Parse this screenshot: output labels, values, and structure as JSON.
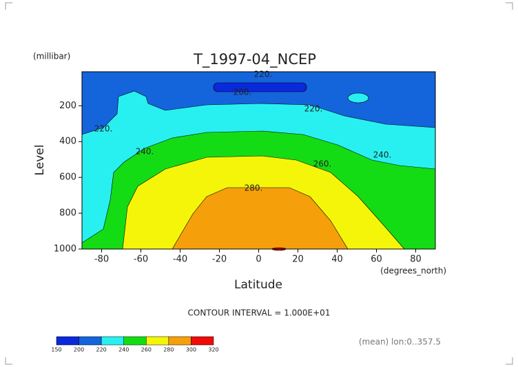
{
  "chart_data": {
    "type": "contour",
    "title": "T_1997-04_NCEP",
    "y_unit": "(millibar)",
    "y_label": "Level",
    "x_label": "Latitude",
    "x_unit": "(degrees_north)",
    "xlim": [
      -90,
      90
    ],
    "xticks": [
      -80,
      -60,
      -40,
      -20,
      0,
      20,
      40,
      60,
      80
    ],
    "ylim": [
      1000,
      10
    ],
    "yticks": [
      200,
      400,
      600,
      800,
      1000
    ],
    "contour_interval": "CONTOUR INTERVAL = 1.000E+01",
    "averaging": "(mean) lon:0..357.5",
    "levels": [
      150,
      200,
      220,
      240,
      260,
      280,
      300,
      320
    ],
    "colors": [
      "#0a28dc",
      "#1464dc",
      "#28f0f0",
      "#14dc14",
      "#f5f50a",
      "#f5a00a",
      "#f00a0a"
    ],
    "contour_labels": [
      {
        "value": 220,
        "label": "220."
      },
      {
        "value": 200,
        "label": "200."
      },
      {
        "value": 220,
        "label": "220."
      },
      {
        "value": 220,
        "label": "220."
      },
      {
        "value": 240,
        "label": "240."
      },
      {
        "value": 240,
        "label": "240."
      },
      {
        "value": 260,
        "label": "260."
      },
      {
        "value": 280,
        "label": "280."
      }
    ]
  }
}
